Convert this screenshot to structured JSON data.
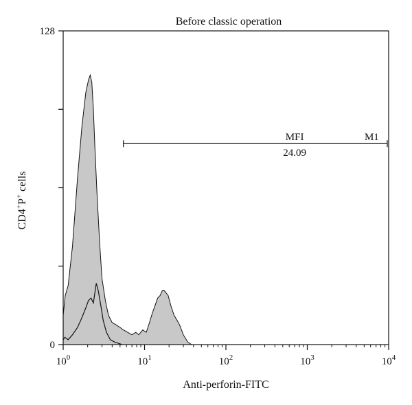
{
  "chart_data": {
    "type": "area",
    "title": "Before classic operation",
    "xlabel": "Anti-perforin-FITC",
    "ylabel": {
      "base": "CD4",
      "sup1": "+",
      "mid": "P",
      "sup2": "+",
      "tail": " cells"
    },
    "x_scale": "log",
    "xlim": [
      1,
      10000
    ],
    "ylim": [
      0,
      128
    ],
    "x_ticks": [
      {
        "value": 1,
        "base": "10",
        "exp": "0"
      },
      {
        "value": 10,
        "base": "10",
        "exp": "1"
      },
      {
        "value": 100,
        "base": "10",
        "exp": "2"
      },
      {
        "value": 1000,
        "base": "10",
        "exp": "3"
      },
      {
        "value": 10000,
        "base": "10",
        "exp": "4"
      }
    ],
    "y_ticks": [
      0,
      32,
      64,
      96,
      128
    ],
    "y_tick_labels": [
      {
        "value": 0,
        "label": "0"
      },
      {
        "value": 128,
        "label": "128"
      }
    ],
    "series": [
      {
        "style": "filled-gray",
        "x": [
          1.0,
          1.06,
          1.15,
          1.3,
          1.5,
          1.7,
          1.9,
          2.05,
          2.15,
          2.25,
          2.35,
          2.45,
          2.6,
          2.8,
          3.0,
          3.3,
          3.6,
          4.0,
          4.5,
          5.0,
          5.5,
          6.2,
          7.0,
          7.8,
          8.5,
          9.5,
          10.5,
          11.5,
          12.5,
          13.5,
          14.5,
          15.5,
          16.5,
          17.5,
          18.5,
          19.5,
          21.0,
          23.0,
          25.0,
          27.0,
          30.0,
          34.0,
          38.0,
          42.0,
          46.0
        ],
        "y": [
          12,
          20,
          24,
          40,
          68,
          89,
          103,
          108,
          110,
          107,
          96,
          81,
          62,
          42,
          27,
          18,
          12,
          9,
          8,
          7,
          6,
          5,
          4,
          5,
          4,
          6,
          5,
          9,
          13,
          16,
          19,
          20,
          22,
          22,
          21,
          20,
          16,
          12,
          10,
          8,
          4,
          1,
          0,
          0,
          0
        ]
      },
      {
        "style": "line-black",
        "x": [
          1.0,
          1.05,
          1.15,
          1.3,
          1.5,
          1.7,
          1.9,
          2.05,
          2.2,
          2.35,
          2.45,
          2.55,
          2.7,
          2.9,
          3.1,
          3.4,
          3.8,
          4.3,
          4.8,
          5.3
        ],
        "y": [
          2,
          3,
          2,
          4,
          7,
          11,
          15,
          18,
          19,
          17,
          21,
          25,
          22,
          16,
          10,
          5,
          2,
          1,
          0.5,
          0
        ]
      }
    ],
    "marker": {
      "label": "M1",
      "stat_label": "MFI",
      "stat_value": "24.09",
      "range": [
        5.5,
        10000
      ],
      "y": 82
    }
  }
}
